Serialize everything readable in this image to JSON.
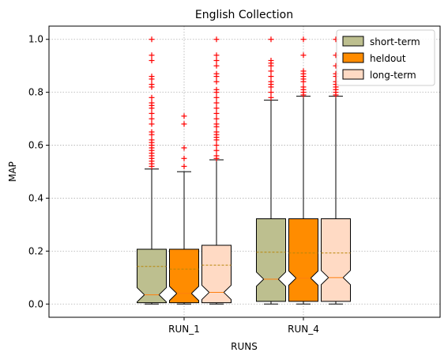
{
  "chart_data": {
    "type": "box",
    "title": "English Collection",
    "xlabel": "RUNS",
    "ylabel": "MAP",
    "ylim": [
      -0.05,
      1.05
    ],
    "yticks": [
      "0.0",
      "0.2",
      "0.4",
      "0.6",
      "0.8",
      "1.0"
    ],
    "categories": [
      "RUN_1",
      "RUN_4"
    ],
    "grid": true,
    "notched": true,
    "show_means": "dashed line",
    "legend": {
      "placement": "top-right"
    },
    "colors": {
      "median": "#ff7f0e",
      "mean": "#b8860b",
      "outlier": "#ff0000",
      "edge": "#000000",
      "grid": "#b0b0b0"
    },
    "series": [
      {
        "name": "short-term",
        "color": "#bdbf8f",
        "stats": [
          {
            "category": "RUN_1",
            "whislo": 0.0,
            "q1": 0.005,
            "median": 0.035,
            "mean": 0.142,
            "q3": 0.207,
            "whishi": 0.51,
            "fliers": [
              0.52,
              0.53,
              0.54,
              0.55,
              0.56,
              0.57,
              0.58,
              0.59,
              0.6,
              0.61,
              0.62,
              0.64,
              0.65,
              0.68,
              0.7,
              0.72,
              0.74,
              0.75,
              0.76,
              0.78,
              0.82,
              0.83,
              0.85,
              0.86,
              0.92,
              0.94,
              1.0
            ]
          },
          {
            "category": "RUN_4",
            "whislo": 0.0,
            "q1": 0.01,
            "median": 0.094,
            "mean": 0.196,
            "q3": 0.322,
            "whishi": 0.77,
            "fliers": [
              0.78,
              0.8,
              0.82,
              0.83,
              0.84,
              0.86,
              0.88,
              0.9,
              0.91,
              0.92,
              1.0
            ]
          }
        ]
      },
      {
        "name": "heldout",
        "color": "#ff8c00",
        "stats": [
          {
            "category": "RUN_1",
            "whislo": 0.0,
            "q1": 0.005,
            "median": 0.04,
            "mean": 0.132,
            "q3": 0.207,
            "whishi": 0.5,
            "fliers": [
              0.52,
              0.55,
              0.59,
              0.68,
              0.71
            ]
          },
          {
            "category": "RUN_4",
            "whislo": 0.0,
            "q1": 0.01,
            "median": 0.098,
            "mean": 0.193,
            "q3": 0.322,
            "whishi": 0.785,
            "fliers": [
              0.79,
              0.8,
              0.81,
              0.82,
              0.84,
              0.85,
              0.86,
              0.87,
              0.88,
              0.94,
              1.0
            ]
          }
        ]
      },
      {
        "name": "long-term",
        "color": "#ffdac4",
        "stats": [
          {
            "category": "RUN_1",
            "whislo": 0.0,
            "q1": 0.005,
            "median": 0.044,
            "mean": 0.147,
            "q3": 0.222,
            "whishi": 0.545,
            "fliers": [
              0.55,
              0.56,
              0.58,
              0.6,
              0.62,
              0.63,
              0.64,
              0.65,
              0.67,
              0.68,
              0.7,
              0.72,
              0.74,
              0.76,
              0.78,
              0.8,
              0.81,
              0.84,
              0.86,
              0.87,
              0.9,
              0.92,
              0.94,
              1.0
            ]
          },
          {
            "category": "RUN_4",
            "whislo": 0.0,
            "q1": 0.01,
            "median": 0.1,
            "mean": 0.193,
            "q3": 0.322,
            "whishi": 0.785,
            "fliers": [
              0.79,
              0.8,
              0.81,
              0.82,
              0.83,
              0.84,
              0.86,
              0.87,
              0.9,
              0.94,
              1.0
            ]
          }
        ]
      }
    ]
  }
}
